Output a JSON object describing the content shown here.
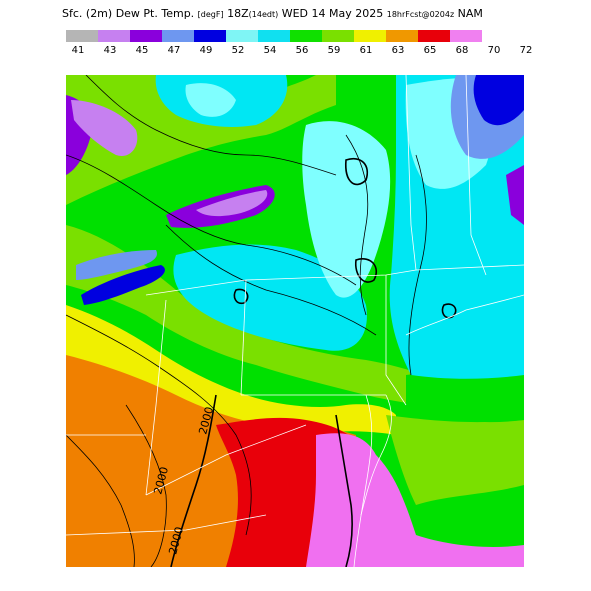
{
  "header": {
    "title_main": "Sfc. (2m) Dew Pt. Temp.",
    "units": "[degF]",
    "valid_time": "18Z",
    "valid_local": "(14edt)",
    "date": "WED 14 May 2025",
    "forecast": "18hrFcst@0204z",
    "model": "NAM"
  },
  "legend": {
    "values": [
      "41",
      "43",
      "45",
      "47",
      "49",
      "52",
      "54",
      "56",
      "59",
      "61",
      "63",
      "65",
      "68",
      "70",
      "72"
    ],
    "colors": [
      "#b5b5b5",
      "#c680f0",
      "#8a00dc",
      "#6e97f0",
      "#0000e0",
      "#7ff5f5",
      "#10e0f0",
      "#10e000",
      "#7ae000",
      "#f0f000",
      "#f09800",
      "#e8000a",
      "#f080f0"
    ]
  },
  "contour_labels": [
    "2000",
    "2000",
    "2000"
  ],
  "colors": {
    "green": "#00e000",
    "lime": "#7ae000",
    "cyan": "#00e7f3",
    "light_cyan": "#7fffff",
    "yellow": "#f0f000",
    "orange": "#f08000",
    "red": "#e8000a",
    "pink": "#f070f0",
    "blue": "#0000e0",
    "light_blue": "#6e97f0",
    "purple": "#8a00dc",
    "lavender": "#c680f0"
  }
}
